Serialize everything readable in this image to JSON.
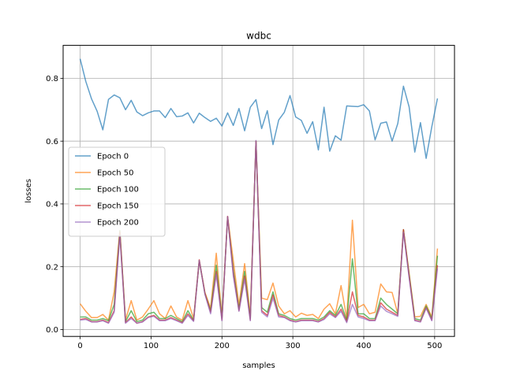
{
  "chart_data": {
    "type": "line",
    "title": "wdbc",
    "xlabel": "samples",
    "ylabel": "losses",
    "xlim": [
      -24,
      528
    ],
    "ylim": [
      -0.022,
      0.905
    ],
    "xticks": [
      0,
      100,
      200,
      300,
      400,
      500
    ],
    "xtick_labels": [
      "0",
      "100",
      "200",
      "300",
      "400",
      "500"
    ],
    "yticks": [
      0.0,
      0.2,
      0.4,
      0.6,
      0.8
    ],
    "ytick_labels": [
      "0.0",
      "0.2",
      "0.4",
      "0.6",
      "0.8"
    ],
    "grid": true,
    "legend_position": "center-left",
    "x": [
      0,
      8,
      16,
      24,
      32,
      40,
      48,
      56,
      64,
      72,
      80,
      88,
      96,
      104,
      112,
      120,
      128,
      136,
      144,
      152,
      160,
      168,
      176,
      184,
      192,
      200,
      208,
      216,
      224,
      232,
      240,
      248,
      256,
      264,
      272,
      280,
      288,
      296,
      304,
      312,
      320,
      328,
      336,
      344,
      352,
      360,
      368,
      376,
      384,
      392,
      400,
      408,
      416,
      424,
      432,
      440,
      448,
      456,
      464,
      472,
      480,
      488,
      496,
      504
    ],
    "series": [
      {
        "name": "Epoch 0",
        "color": "#1f77b4",
        "values": [
          0.862,
          0.79,
          0.735,
          0.695,
          0.636,
          0.733,
          0.747,
          0.738,
          0.7,
          0.73,
          0.693,
          0.681,
          0.69,
          0.696,
          0.696,
          0.675,
          0.704,
          0.678,
          0.68,
          0.69,
          0.658,
          0.689,
          0.675,
          0.663,
          0.673,
          0.648,
          0.69,
          0.65,
          0.704,
          0.633,
          0.708,
          0.732,
          0.64,
          0.697,
          0.589,
          0.667,
          0.692,
          0.745,
          0.677,
          0.666,
          0.625,
          0.662,
          0.572,
          0.708,
          0.568,
          0.617,
          0.603,
          0.712,
          0.711,
          0.71,
          0.716,
          0.696,
          0.604,
          0.657,
          0.661,
          0.6,
          0.656,
          0.775,
          0.709,
          0.565,
          0.659,
          0.545,
          0.646,
          0.736
        ]
      },
      {
        "name": "Epoch 50",
        "color": "#ff7f0e",
        "values": [
          0.082,
          0.058,
          0.038,
          0.038,
          0.048,
          0.03,
          0.12,
          0.315,
          0.03,
          0.092,
          0.03,
          0.04,
          0.065,
          0.092,
          0.05,
          0.035,
          0.075,
          0.04,
          0.03,
          0.092,
          0.035,
          0.218,
          0.118,
          0.068,
          0.243,
          0.04,
          0.36,
          0.22,
          0.078,
          0.21,
          0.045,
          0.6,
          0.1,
          0.095,
          0.148,
          0.075,
          0.05,
          0.06,
          0.04,
          0.052,
          0.045,
          0.048,
          0.035,
          0.065,
          0.082,
          0.05,
          0.14,
          0.035,
          0.348,
          0.07,
          0.08,
          0.05,
          0.055,
          0.145,
          0.12,
          0.118,
          0.05,
          0.318,
          0.18,
          0.04,
          0.042,
          0.08,
          0.04,
          0.258
        ]
      },
      {
        "name": "Epoch 100",
        "color": "#2ca02c",
        "values": [
          0.04,
          0.04,
          0.03,
          0.03,
          0.035,
          0.028,
          0.08,
          0.315,
          0.025,
          0.06,
          0.025,
          0.03,
          0.05,
          0.055,
          0.035,
          0.035,
          0.045,
          0.035,
          0.025,
          0.06,
          0.03,
          0.22,
          0.115,
          0.06,
          0.205,
          0.035,
          0.358,
          0.19,
          0.065,
          0.185,
          0.035,
          0.6,
          0.07,
          0.055,
          0.12,
          0.05,
          0.045,
          0.035,
          0.03,
          0.035,
          0.035,
          0.035,
          0.03,
          0.04,
          0.06,
          0.045,
          0.08,
          0.03,
          0.225,
          0.05,
          0.05,
          0.035,
          0.035,
          0.1,
          0.08,
          0.065,
          0.05,
          0.318,
          0.175,
          0.035,
          0.03,
          0.075,
          0.035,
          0.235
        ]
      },
      {
        "name": "Epoch 150",
        "color": "#d62728",
        "values": [
          0.032,
          0.035,
          0.025,
          0.025,
          0.03,
          0.022,
          0.06,
          0.31,
          0.022,
          0.04,
          0.02,
          0.025,
          0.04,
          0.045,
          0.03,
          0.03,
          0.038,
          0.03,
          0.022,
          0.05,
          0.028,
          0.222,
          0.115,
          0.055,
          0.185,
          0.03,
          0.36,
          0.18,
          0.06,
          0.17,
          0.03,
          0.6,
          0.06,
          0.045,
          0.11,
          0.045,
          0.04,
          0.03,
          0.025,
          0.03,
          0.03,
          0.03,
          0.025,
          0.035,
          0.055,
          0.04,
          0.065,
          0.025,
          0.12,
          0.045,
          0.04,
          0.03,
          0.03,
          0.085,
          0.065,
          0.055,
          0.045,
          0.318,
          0.17,
          0.03,
          0.025,
          0.07,
          0.03,
          0.205
        ]
      },
      {
        "name": "Epoch 200",
        "color": "#9467bd",
        "values": [
          0.03,
          0.032,
          0.024,
          0.024,
          0.028,
          0.02,
          0.055,
          0.3,
          0.02,
          0.035,
          0.02,
          0.024,
          0.038,
          0.042,
          0.028,
          0.028,
          0.035,
          0.028,
          0.02,
          0.045,
          0.026,
          0.22,
          0.112,
          0.05,
          0.175,
          0.028,
          0.36,
          0.17,
          0.058,
          0.16,
          0.028,
          0.602,
          0.055,
          0.04,
          0.1,
          0.04,
          0.038,
          0.028,
          0.024,
          0.028,
          0.028,
          0.028,
          0.024,
          0.032,
          0.05,
          0.038,
          0.058,
          0.022,
          0.08,
          0.04,
          0.035,
          0.028,
          0.028,
          0.075,
          0.058,
          0.05,
          0.042,
          0.31,
          0.165,
          0.028,
          0.024,
          0.068,
          0.028,
          0.195
        ]
      }
    ]
  }
}
